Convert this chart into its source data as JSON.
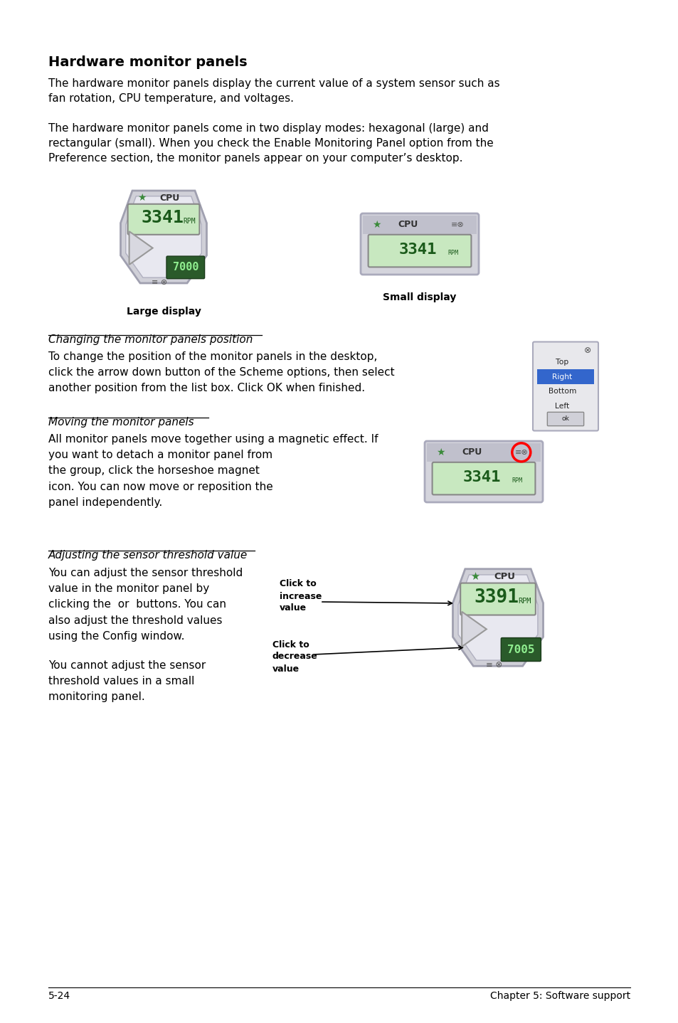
{
  "title": "Hardware monitor panels",
  "para1": "The hardware monitor panels display the current value of a system sensor such as\nfan rotation, CPU temperature, and voltages.",
  "para2": "The hardware monitor panels come in two display modes: hexagonal (large) and\nrectangular (small). When you check the Enable Monitoring Panel option from the\nPreference section, the monitor panels appear on your computer’s desktop.",
  "label_large": "Large display",
  "label_small": "Small display",
  "section1_title": "Changing the monitor panels position",
  "section1_body": "To change the position of the monitor panels in the desktop,\nclick the arrow down button of the Scheme options, then select\nanother position from the list box. Click OK when finished.",
  "section2_title": "Moving the monitor panels",
  "section2_body": "All monitor panels move together using a magnetic effect. If\nyou want to detach a monitor panel from\nthe group, click the horseshoe magnet\nicon. You can now move or reposition the\npanel independently.",
  "section3_title": "Adjusting the sensor threshold value",
  "section3_body1": "You can adjust the sensor threshold\nvalue in the monitor panel by\nclicking the  or  buttons. You can\nalso adjust the threshold values\nusing the Config window.",
  "section3_body2": "You cannot adjust the sensor\nthreshold values in a small\nmonitoring panel.",
  "click_increase": "Click to\nincrease\nvalue",
  "click_decrease": "Click to\ndecrease\nvalue",
  "footer_left": "5-24",
  "footer_right": "Chapter 5: Software support",
  "bg_color": "#ffffff",
  "text_color": "#000000",
  "display_green": "#c8e8c0",
  "lcd_text": "#1a5a1a"
}
